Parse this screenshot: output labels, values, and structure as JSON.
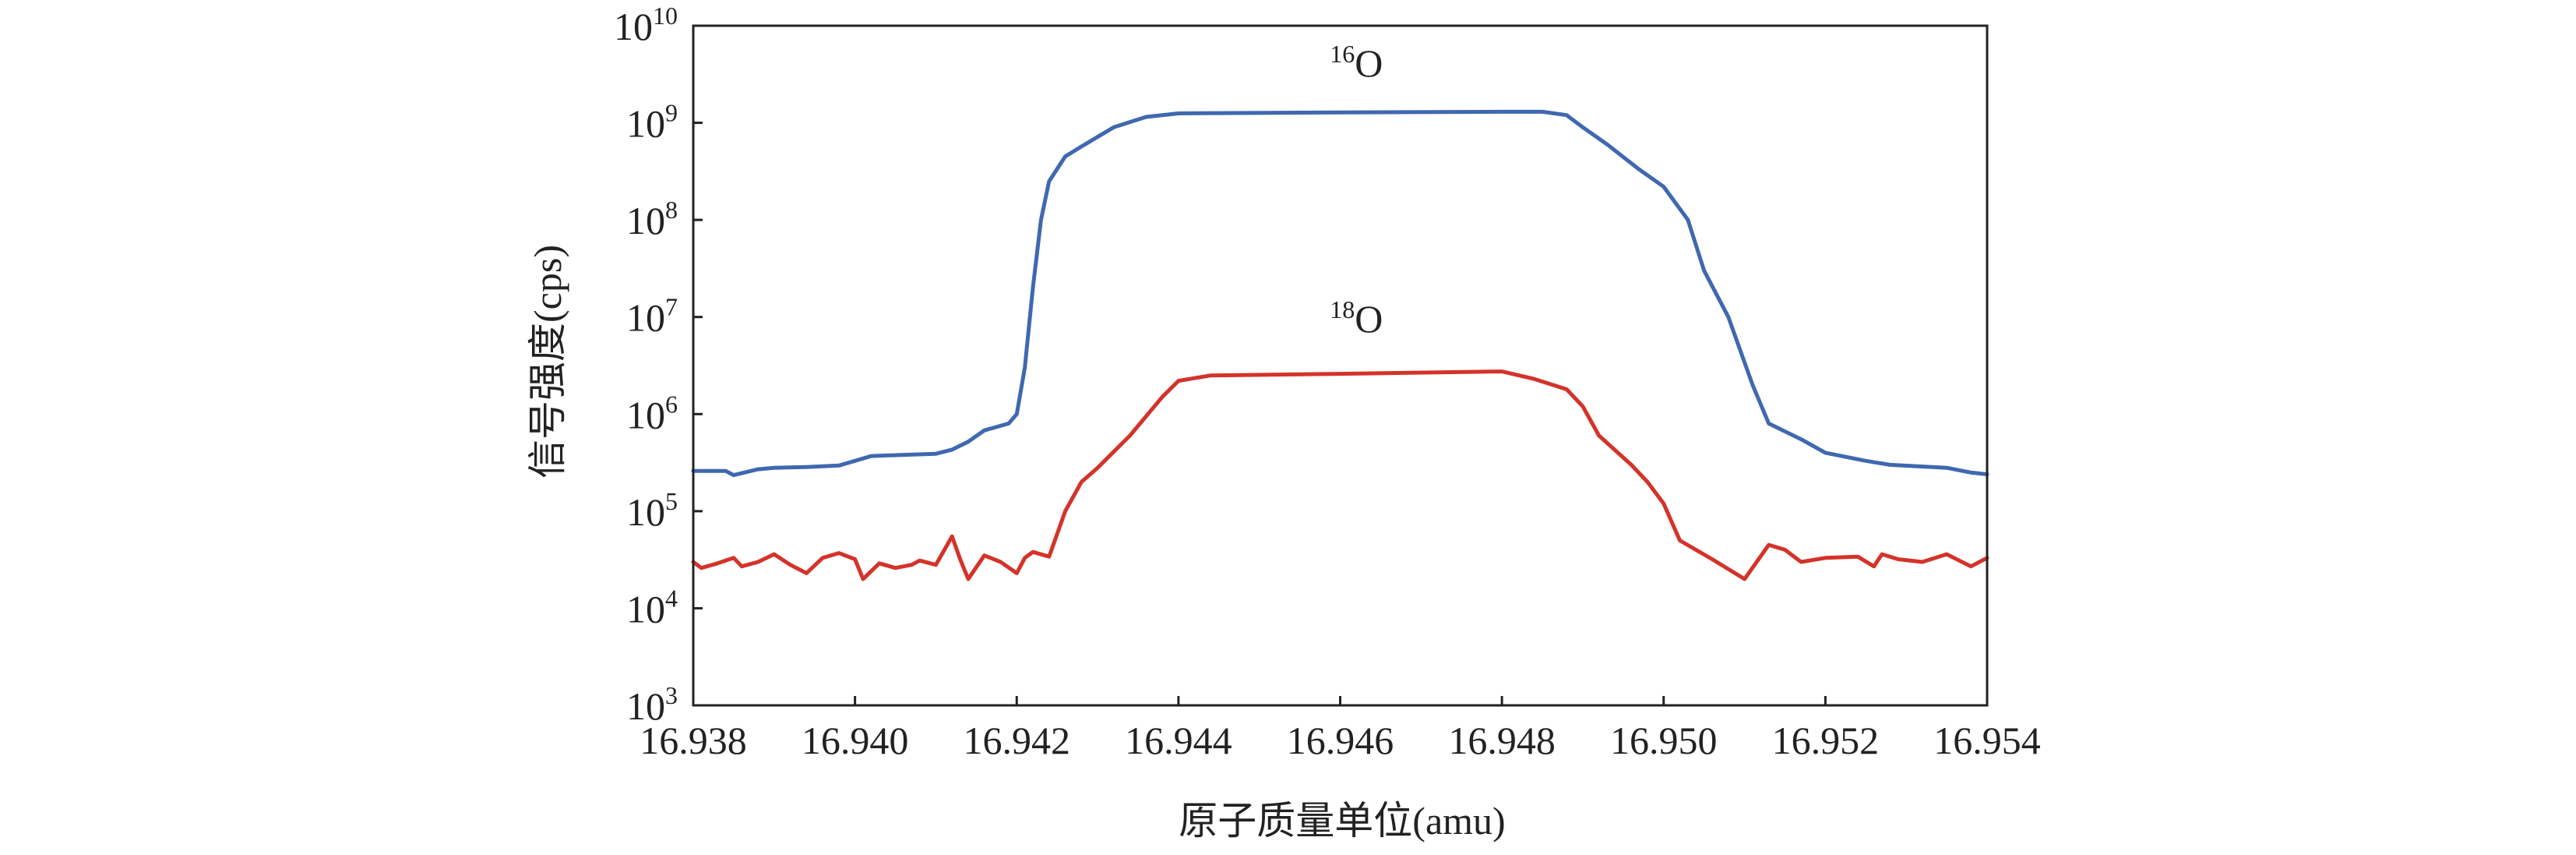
{
  "chart_data": {
    "type": "line",
    "title": "",
    "xlabel": "原子质量单位(amu)",
    "ylabel": "信号强度(cps)",
    "xlim": [
      16.938,
      16.954
    ],
    "ylim": [
      1000,
      10000000000
    ],
    "y_scale": "log",
    "grid": false,
    "x_ticks": [
      "16.938",
      "16.940",
      "16.942",
      "16.944",
      "16.946",
      "16.948",
      "16.950",
      "16.952",
      "16.954"
    ],
    "y_ticks": [
      {
        "base": "10",
        "exp": "3"
      },
      {
        "base": "10",
        "exp": "4"
      },
      {
        "base": "10",
        "exp": "5"
      },
      {
        "base": "10",
        "exp": "6"
      },
      {
        "base": "10",
        "exp": "7"
      },
      {
        "base": "10",
        "exp": "8"
      },
      {
        "base": "10",
        "exp": "9"
      },
      {
        "base": "10",
        "exp": "10"
      }
    ],
    "annotations": [
      {
        "mass": "16",
        "element": "O",
        "x": 16.9462,
        "y": 3000000000
      },
      {
        "mass": "18",
        "element": "O",
        "x": 16.9462,
        "y": 7000000
      }
    ],
    "series": [
      {
        "color": "#3f68b0",
        "points": [
          [
            16.938,
            260000
          ],
          [
            16.9384,
            260000
          ],
          [
            16.9385,
            235000
          ],
          [
            16.9388,
            270000
          ],
          [
            16.939,
            280000
          ],
          [
            16.9394,
            285000
          ],
          [
            16.9398,
            295000
          ],
          [
            16.94,
            330000
          ],
          [
            16.9402,
            370000
          ],
          [
            16.9406,
            380000
          ],
          [
            16.941,
            390000
          ],
          [
            16.9412,
            430000
          ],
          [
            16.9414,
            520000
          ],
          [
            16.9416,
            680000
          ],
          [
            16.9419,
            800000
          ],
          [
            16.942,
            1000000
          ],
          [
            16.9421,
            3000000
          ],
          [
            16.9422,
            20000000
          ],
          [
            16.9423,
            100000000
          ],
          [
            16.9424,
            250000000
          ],
          [
            16.9426,
            450000000
          ],
          [
            16.9428,
            570000000
          ],
          [
            16.9432,
            900000000
          ],
          [
            16.9436,
            1150000000
          ],
          [
            16.944,
            1250000000
          ],
          [
            16.946,
            1280000000
          ],
          [
            16.948,
            1300000000
          ],
          [
            16.9485,
            1300000000
          ],
          [
            16.9488,
            1200000000
          ],
          [
            16.949,
            900000000
          ],
          [
            16.9493,
            600000000
          ],
          [
            16.9497,
            330000000
          ],
          [
            16.95,
            220000000
          ],
          [
            16.9503,
            100000000
          ],
          [
            16.9505,
            30000000
          ],
          [
            16.9508,
            10000000
          ],
          [
            16.9511,
            2000000
          ],
          [
            16.9513,
            800000
          ],
          [
            16.9517,
            550000
          ],
          [
            16.952,
            400000
          ],
          [
            16.9525,
            330000
          ],
          [
            16.9528,
            300000
          ],
          [
            16.9535,
            280000
          ],
          [
            16.9538,
            250000
          ],
          [
            16.954,
            240000
          ]
        ]
      },
      {
        "color": "#d4332a",
        "points": [
          [
            16.938,
            30000
          ],
          [
            16.9381,
            26000
          ],
          [
            16.9383,
            29000
          ],
          [
            16.9385,
            33000
          ],
          [
            16.9386,
            27000
          ],
          [
            16.9388,
            30000
          ],
          [
            16.939,
            36000
          ],
          [
            16.9392,
            28000
          ],
          [
            16.9394,
            23000
          ],
          [
            16.9396,
            33000
          ],
          [
            16.9398,
            37000
          ],
          [
            16.94,
            32000
          ],
          [
            16.9401,
            20000
          ],
          [
            16.9403,
            29000
          ],
          [
            16.9405,
            26000
          ],
          [
            16.9407,
            28000
          ],
          [
            16.9408,
            31000
          ],
          [
            16.941,
            28000
          ],
          [
            16.9412,
            55000
          ],
          [
            16.9413,
            32000
          ],
          [
            16.9414,
            20000
          ],
          [
            16.9416,
            35000
          ],
          [
            16.9418,
            30000
          ],
          [
            16.942,
            23000
          ],
          [
            16.9421,
            33000
          ],
          [
            16.9422,
            38000
          ],
          [
            16.9424,
            34000
          ],
          [
            16.9426,
            100000
          ],
          [
            16.9428,
            200000
          ],
          [
            16.943,
            280000
          ],
          [
            16.9434,
            600000
          ],
          [
            16.9438,
            1500000
          ],
          [
            16.944,
            2200000
          ],
          [
            16.9444,
            2500000
          ],
          [
            16.946,
            2600000
          ],
          [
            16.948,
            2750000
          ],
          [
            16.9484,
            2300000
          ],
          [
            16.9488,
            1800000
          ],
          [
            16.949,
            1200000
          ],
          [
            16.9492,
            600000
          ],
          [
            16.9496,
            300000
          ],
          [
            16.9498,
            200000
          ],
          [
            16.95,
            120000
          ],
          [
            16.9502,
            50000
          ],
          [
            16.9506,
            32000
          ],
          [
            16.951,
            20000
          ],
          [
            16.9513,
            45000
          ],
          [
            16.9515,
            40000
          ],
          [
            16.9517,
            30000
          ],
          [
            16.952,
            33000
          ],
          [
            16.9524,
            34000
          ],
          [
            16.9526,
            27000
          ],
          [
            16.9527,
            36000
          ],
          [
            16.9529,
            32000
          ],
          [
            16.9532,
            30000
          ],
          [
            16.9535,
            36000
          ],
          [
            16.9538,
            27000
          ],
          [
            16.954,
            33000
          ]
        ]
      }
    ]
  }
}
